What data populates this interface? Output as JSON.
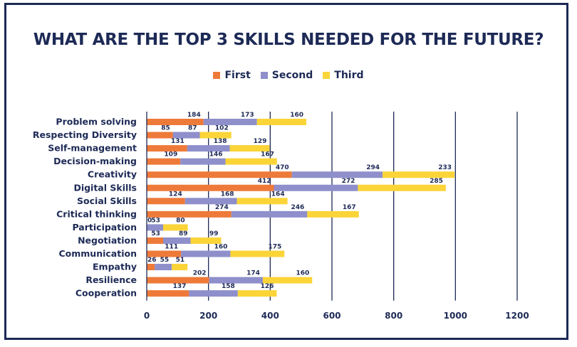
{
  "title": "WHAT ARE THE TOP 3 SKILLS NEEDED FOR THE FUTURE?",
  "colors": {
    "frame": "#1d2a56",
    "text": "#1d2a56",
    "grid": "#1d2a56",
    "first": "#ee7a3a",
    "second": "#8e8fcb",
    "third": "#fbd438"
  },
  "chart_data": {
    "type": "bar",
    "orientation": "horizontal",
    "stacked": true,
    "title": "WHAT ARE THE TOP 3 SKILLS NEEDED FOR THE FUTURE?",
    "categories": [
      "Problem solving",
      "Respecting Diversity",
      "Self-management",
      "Decision-making",
      "Creativity",
      "Digital Skills",
      "Social Skills",
      "Critical thinking",
      "Participation",
      "Negotiation",
      "Communication",
      "Empathy",
      "Resilience",
      "Cooperation"
    ],
    "series": [
      {
        "name": "First",
        "color": "#ee7a3a",
        "values": [
          184,
          85,
          131,
          109,
          470,
          412,
          124,
          274,
          0,
          53,
          111,
          26,
          202,
          137
        ]
      },
      {
        "name": "Second",
        "color": "#8e8fcb",
        "values": [
          173,
          87,
          138,
          146,
          294,
          272,
          168,
          246,
          53,
          89,
          160,
          55,
          174,
          158
        ]
      },
      {
        "name": "Third",
        "color": "#fbd438",
        "values": [
          160,
          102,
          129,
          167,
          233,
          285,
          164,
          167,
          80,
          99,
          175,
          51,
          160,
          126
        ]
      }
    ],
    "xlim": [
      0,
      1200
    ],
    "xticks": [
      0,
      200,
      400,
      600,
      800,
      1000,
      1200
    ],
    "grid": "vertical",
    "legend_position": "top",
    "data_labels": true
  }
}
